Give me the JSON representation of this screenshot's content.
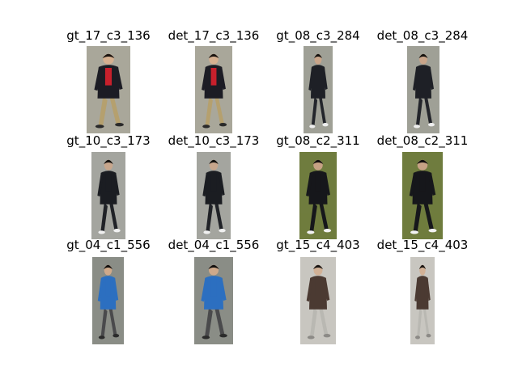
{
  "figure": {
    "panels": [
      {
        "id": "p0",
        "title": "gt_17_c3_136",
        "palette": {
          "bg": "#a9a79a",
          "top": "#1c1c24",
          "shirt": "#c8202c",
          "legs": "#b5a06e",
          "hair": "#1a1410",
          "skin": "#d6b090",
          "shoes": "#2a2a2a"
        }
      },
      {
        "id": "p1",
        "title": "det_17_c3_136",
        "palette": {
          "bg": "#a9a79a",
          "top": "#1c1c24",
          "shirt": "#c8202c",
          "legs": "#b5a06e",
          "hair": "#1a1410",
          "skin": "#d6b090",
          "shoes": "#2a2a2a"
        }
      },
      {
        "id": "p2",
        "title": "gt_08_c3_284",
        "palette": {
          "bg": "#9fa096",
          "top": "#1e2026",
          "shirt": "#1e2026",
          "legs": "#23252b",
          "hair": "#14120f",
          "skin": "#c9a58a",
          "shoes": "#eeeeee"
        }
      },
      {
        "id": "p3",
        "title": "det_08_c3_284",
        "palette": {
          "bg": "#9fa096",
          "top": "#1e2026",
          "shirt": "#1e2026",
          "legs": "#23252b",
          "hair": "#14120f",
          "skin": "#c9a58a",
          "shoes": "#eeeeee"
        }
      },
      {
        "id": "p4",
        "title": "gt_10_c3_173",
        "palette": {
          "bg": "#a4a59f",
          "top": "#1b1d22",
          "shirt": "#1b1d22",
          "legs": "#202227",
          "hair": "#141210",
          "skin": "#c8a68c",
          "shoes": "#f0f0f0"
        }
      },
      {
        "id": "p5",
        "title": "det_10_c3_173",
        "palette": {
          "bg": "#a4a59f",
          "top": "#1b1d22",
          "shirt": "#1b1d22",
          "legs": "#202227",
          "hair": "#141210",
          "skin": "#c8a68c",
          "shoes": "#f0f0f0"
        }
      },
      {
        "id": "p6",
        "title": "gt_08_c2_311",
        "palette": {
          "bg": "#6f7c3e",
          "top": "#16171b",
          "shirt": "#16171b",
          "legs": "#16171b",
          "hair": "#120f0d",
          "skin": "#c6a184",
          "shoes": "#f2f2f2"
        }
      },
      {
        "id": "p7",
        "title": "det_08_c2_311",
        "palette": {
          "bg": "#6f7c3e",
          "top": "#16171b",
          "shirt": "#16171b",
          "legs": "#16171b",
          "hair": "#120f0d",
          "skin": "#c6a184",
          "shoes": "#f2f2f2"
        }
      },
      {
        "id": "p8",
        "title": "gt_04_c1_556",
        "palette": {
          "bg": "#8a8d86",
          "top": "#2c6fc0",
          "shirt": "#2c6fc0",
          "legs": "#4a4a4c",
          "hair": "#131110",
          "skin": "#cfa98a",
          "shoes": "#2b2b2b"
        }
      },
      {
        "id": "p9",
        "title": "det_04_c1_556",
        "palette": {
          "bg": "#8a8d86",
          "top": "#2c6fc0",
          "shirt": "#2c6fc0",
          "legs": "#4a4a4c",
          "hair": "#131110",
          "skin": "#cfa98a",
          "shoes": "#2b2b2b"
        }
      },
      {
        "id": "p10",
        "title": "gt_15_c4_403",
        "palette": {
          "bg": "#c8c6c0",
          "top": "#4b3a32",
          "shirt": "#4b3a32",
          "legs": "#b9b8b2",
          "hair": "#1b1715",
          "skin": "#d2b196",
          "shoes": "#8c8a86"
        }
      },
      {
        "id": "p11",
        "title": "det_15_c4_403",
        "palette": {
          "bg": "#c8c6c0",
          "top": "#4b3a32",
          "shirt": "#4b3a32",
          "legs": "#b9b8b2",
          "hair": "#1b1715",
          "skin": "#d2b196",
          "shoes": "#8c8a86"
        }
      }
    ]
  }
}
